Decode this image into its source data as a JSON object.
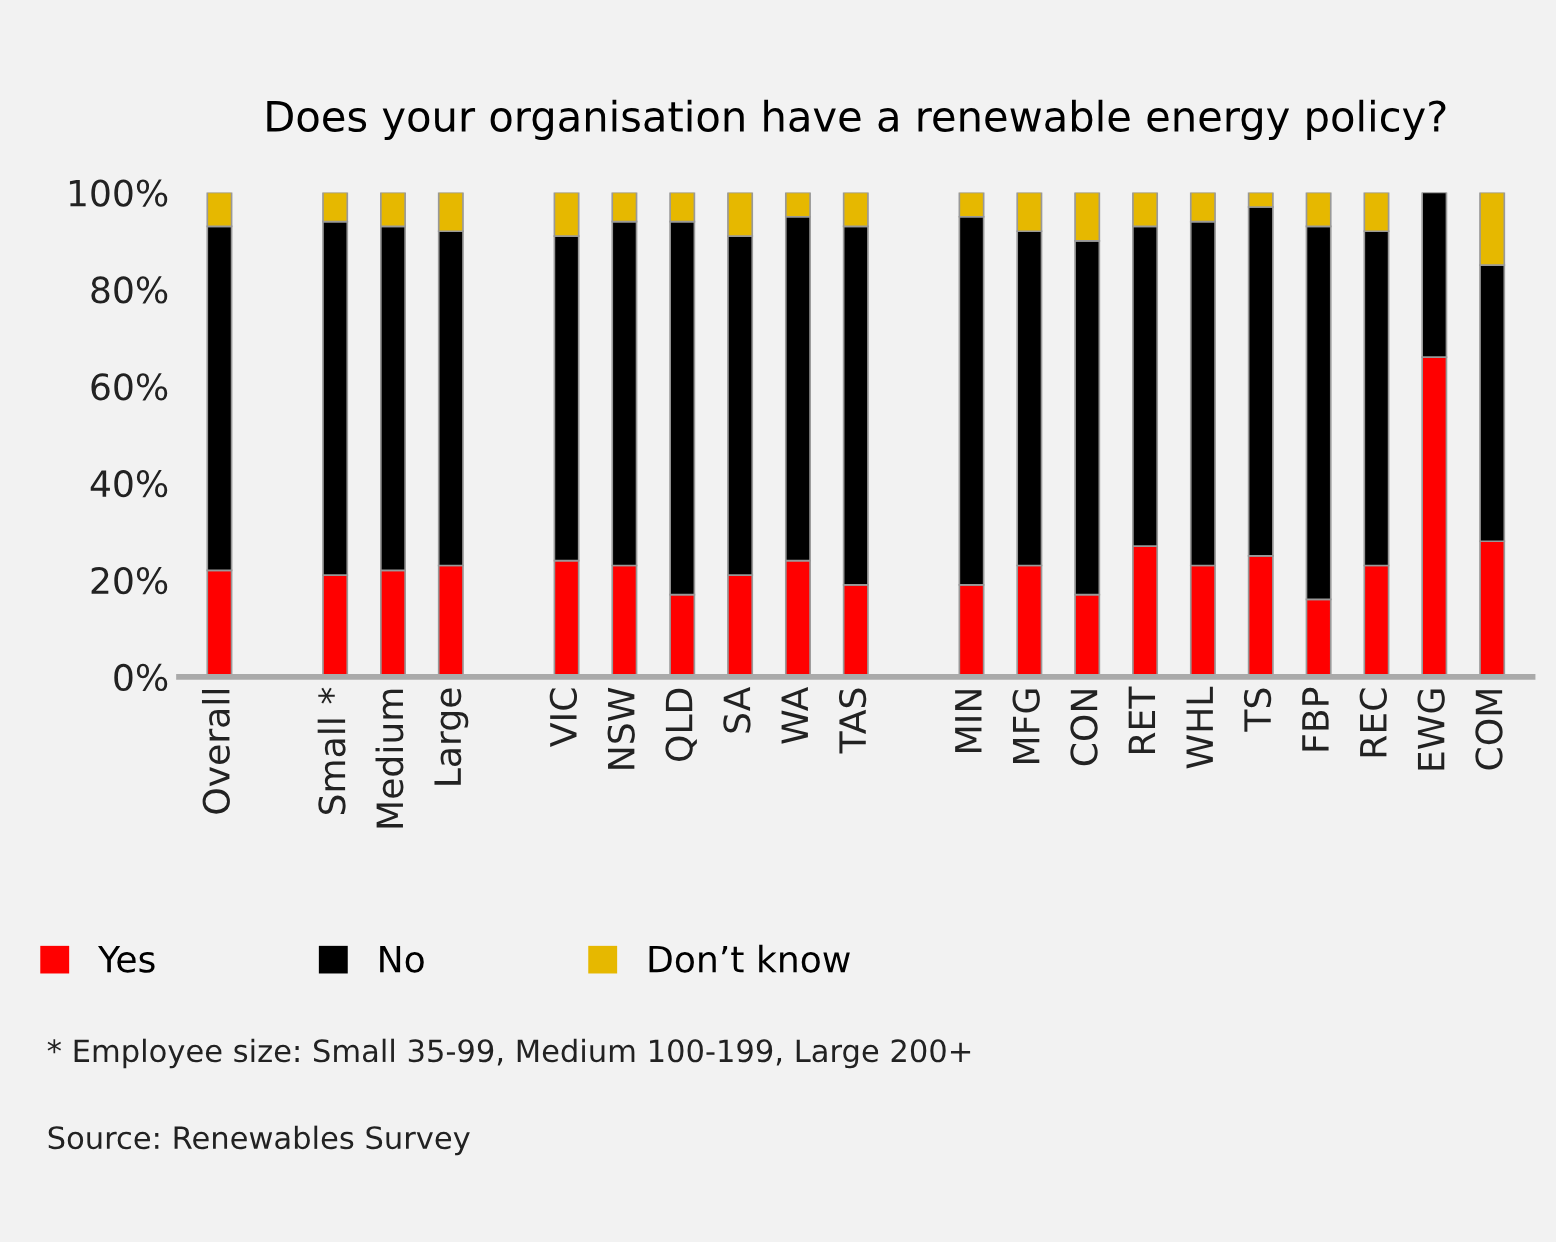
{
  "chart_data": {
    "type": "bar",
    "stacked": true,
    "title": "Does your organisation have a renewable energy policy?",
    "categories": [
      "Overall",
      null,
      "Small *",
      "Medium",
      "Large",
      null,
      "VIC",
      "NSW",
      "QLD",
      "SA",
      "WA",
      "TAS",
      null,
      "MIN",
      "MFG",
      "CON",
      "RET",
      "WHL",
      "TS",
      "FBP",
      "REC",
      "EWG",
      "COM"
    ],
    "series": [
      {
        "name": "Yes",
        "color": "#ff0000",
        "values": [
          22,
          null,
          21,
          22,
          23,
          null,
          24,
          23,
          17,
          21,
          24,
          19,
          null,
          19,
          23,
          17,
          27,
          23,
          25,
          16,
          23,
          66,
          28
        ]
      },
      {
        "name": "No",
        "color": "#000000",
        "values": [
          71,
          null,
          73,
          71,
          69,
          null,
          67,
          71,
          77,
          70,
          71,
          74,
          null,
          76,
          69,
          73,
          66,
          71,
          72,
          77,
          69,
          34,
          57
        ]
      },
      {
        "name": "Don’t know",
        "color": "#e6b800",
        "values": [
          7,
          null,
          6,
          7,
          8,
          null,
          9,
          6,
          6,
          9,
          5,
          7,
          null,
          5,
          8,
          10,
          7,
          6,
          3,
          7,
          8,
          null,
          15
        ]
      }
    ],
    "ylim": [
      0,
      100
    ],
    "yticks": [
      {
        "value": 0,
        "label": "0%"
      },
      {
        "value": 20,
        "label": "20%"
      },
      {
        "value": 40,
        "label": "40%"
      },
      {
        "value": 60,
        "label": "60%"
      },
      {
        "value": 80,
        "label": "80%"
      },
      {
        "value": 100,
        "label": "100%"
      }
    ],
    "grid": false,
    "legend": "bottom",
    "annotations": [
      "* Employee size: Small 35-99, Medium 100-199, Large 200+",
      "Source: Renewables Survey"
    ]
  }
}
